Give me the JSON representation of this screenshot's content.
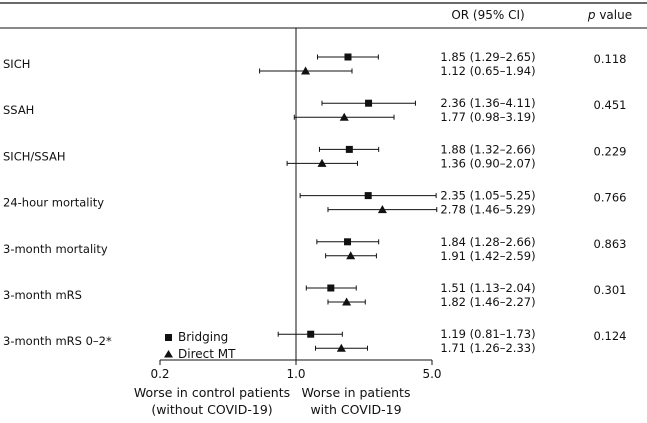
{
  "header": {
    "or_col": "OR (95% CI)",
    "p_col_italic": "p",
    "p_col_rest": " value"
  },
  "legend": [
    {
      "label": "Bridging",
      "marker": "square"
    },
    {
      "label": "Direct MT",
      "marker": "triangle"
    }
  ],
  "x_axis": {
    "ticks": [
      {
        "value": 0.2,
        "label": "0.2"
      },
      {
        "value": 1.0,
        "label": "1.0"
      },
      {
        "value": 5.0,
        "label": "5.0"
      }
    ],
    "left_desc": [
      "Worse in control patients",
      "(without COVID-19)"
    ],
    "right_desc": [
      "Worse in patients",
      "with COVID-19"
    ]
  },
  "chart_data": {
    "type": "forest",
    "xscale": "log",
    "xlim": [
      0.2,
      5.0
    ],
    "reference_line": 1.0,
    "series": [
      {
        "name": "Bridging",
        "marker": "square"
      },
      {
        "name": "Direct MT",
        "marker": "triangle"
      }
    ],
    "rows": [
      {
        "outcome": "SICH",
        "p": "0.118",
        "bridging": {
          "or": 1.85,
          "lo": 1.29,
          "hi": 2.65,
          "text": "1.85 (1.29–2.65)"
        },
        "direct": {
          "or": 1.12,
          "lo": 0.65,
          "hi": 1.94,
          "text": "1.12 (0.65–1.94)"
        }
      },
      {
        "outcome": "SSAH",
        "p": "0.451",
        "bridging": {
          "or": 2.36,
          "lo": 1.36,
          "hi": 4.11,
          "text": "2.36 (1.36–4.11)"
        },
        "direct": {
          "or": 1.77,
          "lo": 0.98,
          "hi": 3.19,
          "text": "1.77 (0.98–3.19)"
        }
      },
      {
        "outcome": "SICH/SSAH",
        "p": "0.229",
        "bridging": {
          "or": 1.88,
          "lo": 1.32,
          "hi": 2.66,
          "text": "1.88 (1.32–2.66)"
        },
        "direct": {
          "or": 1.36,
          "lo": 0.9,
          "hi": 2.07,
          "text": "1.36 (0.90–2.07)"
        }
      },
      {
        "outcome": "24-hour mortality",
        "p": "0.766",
        "bridging": {
          "or": 2.35,
          "lo": 1.05,
          "hi": 5.25,
          "text": "2.35 (1.05–5.25)"
        },
        "direct": {
          "or": 2.78,
          "lo": 1.46,
          "hi": 5.29,
          "text": "2.78 (1.46–5.29)"
        }
      },
      {
        "outcome": "3-month mortality",
        "p": "0.863",
        "bridging": {
          "or": 1.84,
          "lo": 1.28,
          "hi": 2.66,
          "text": "1.84 (1.28–2.66)"
        },
        "direct": {
          "or": 1.91,
          "lo": 1.42,
          "hi": 2.59,
          "text": "1.91 (1.42–2.59)"
        }
      },
      {
        "outcome": "3-month mRS",
        "p": "0.301",
        "bridging": {
          "or": 1.51,
          "lo": 1.13,
          "hi": 2.04,
          "text": "1.51 (1.13–2.04)"
        },
        "direct": {
          "or": 1.82,
          "lo": 1.46,
          "hi": 2.27,
          "text": "1.82 (1.46–2.27)"
        }
      },
      {
        "outcome": "3-month mRS 0–2*",
        "p": "0.124",
        "bridging": {
          "or": 1.19,
          "lo": 0.81,
          "hi": 1.73,
          "text": "1.19 (0.81–1.73)"
        },
        "direct": {
          "or": 1.71,
          "lo": 1.26,
          "hi": 2.33,
          "text": "1.71 (1.26–2.33)"
        }
      }
    ]
  }
}
